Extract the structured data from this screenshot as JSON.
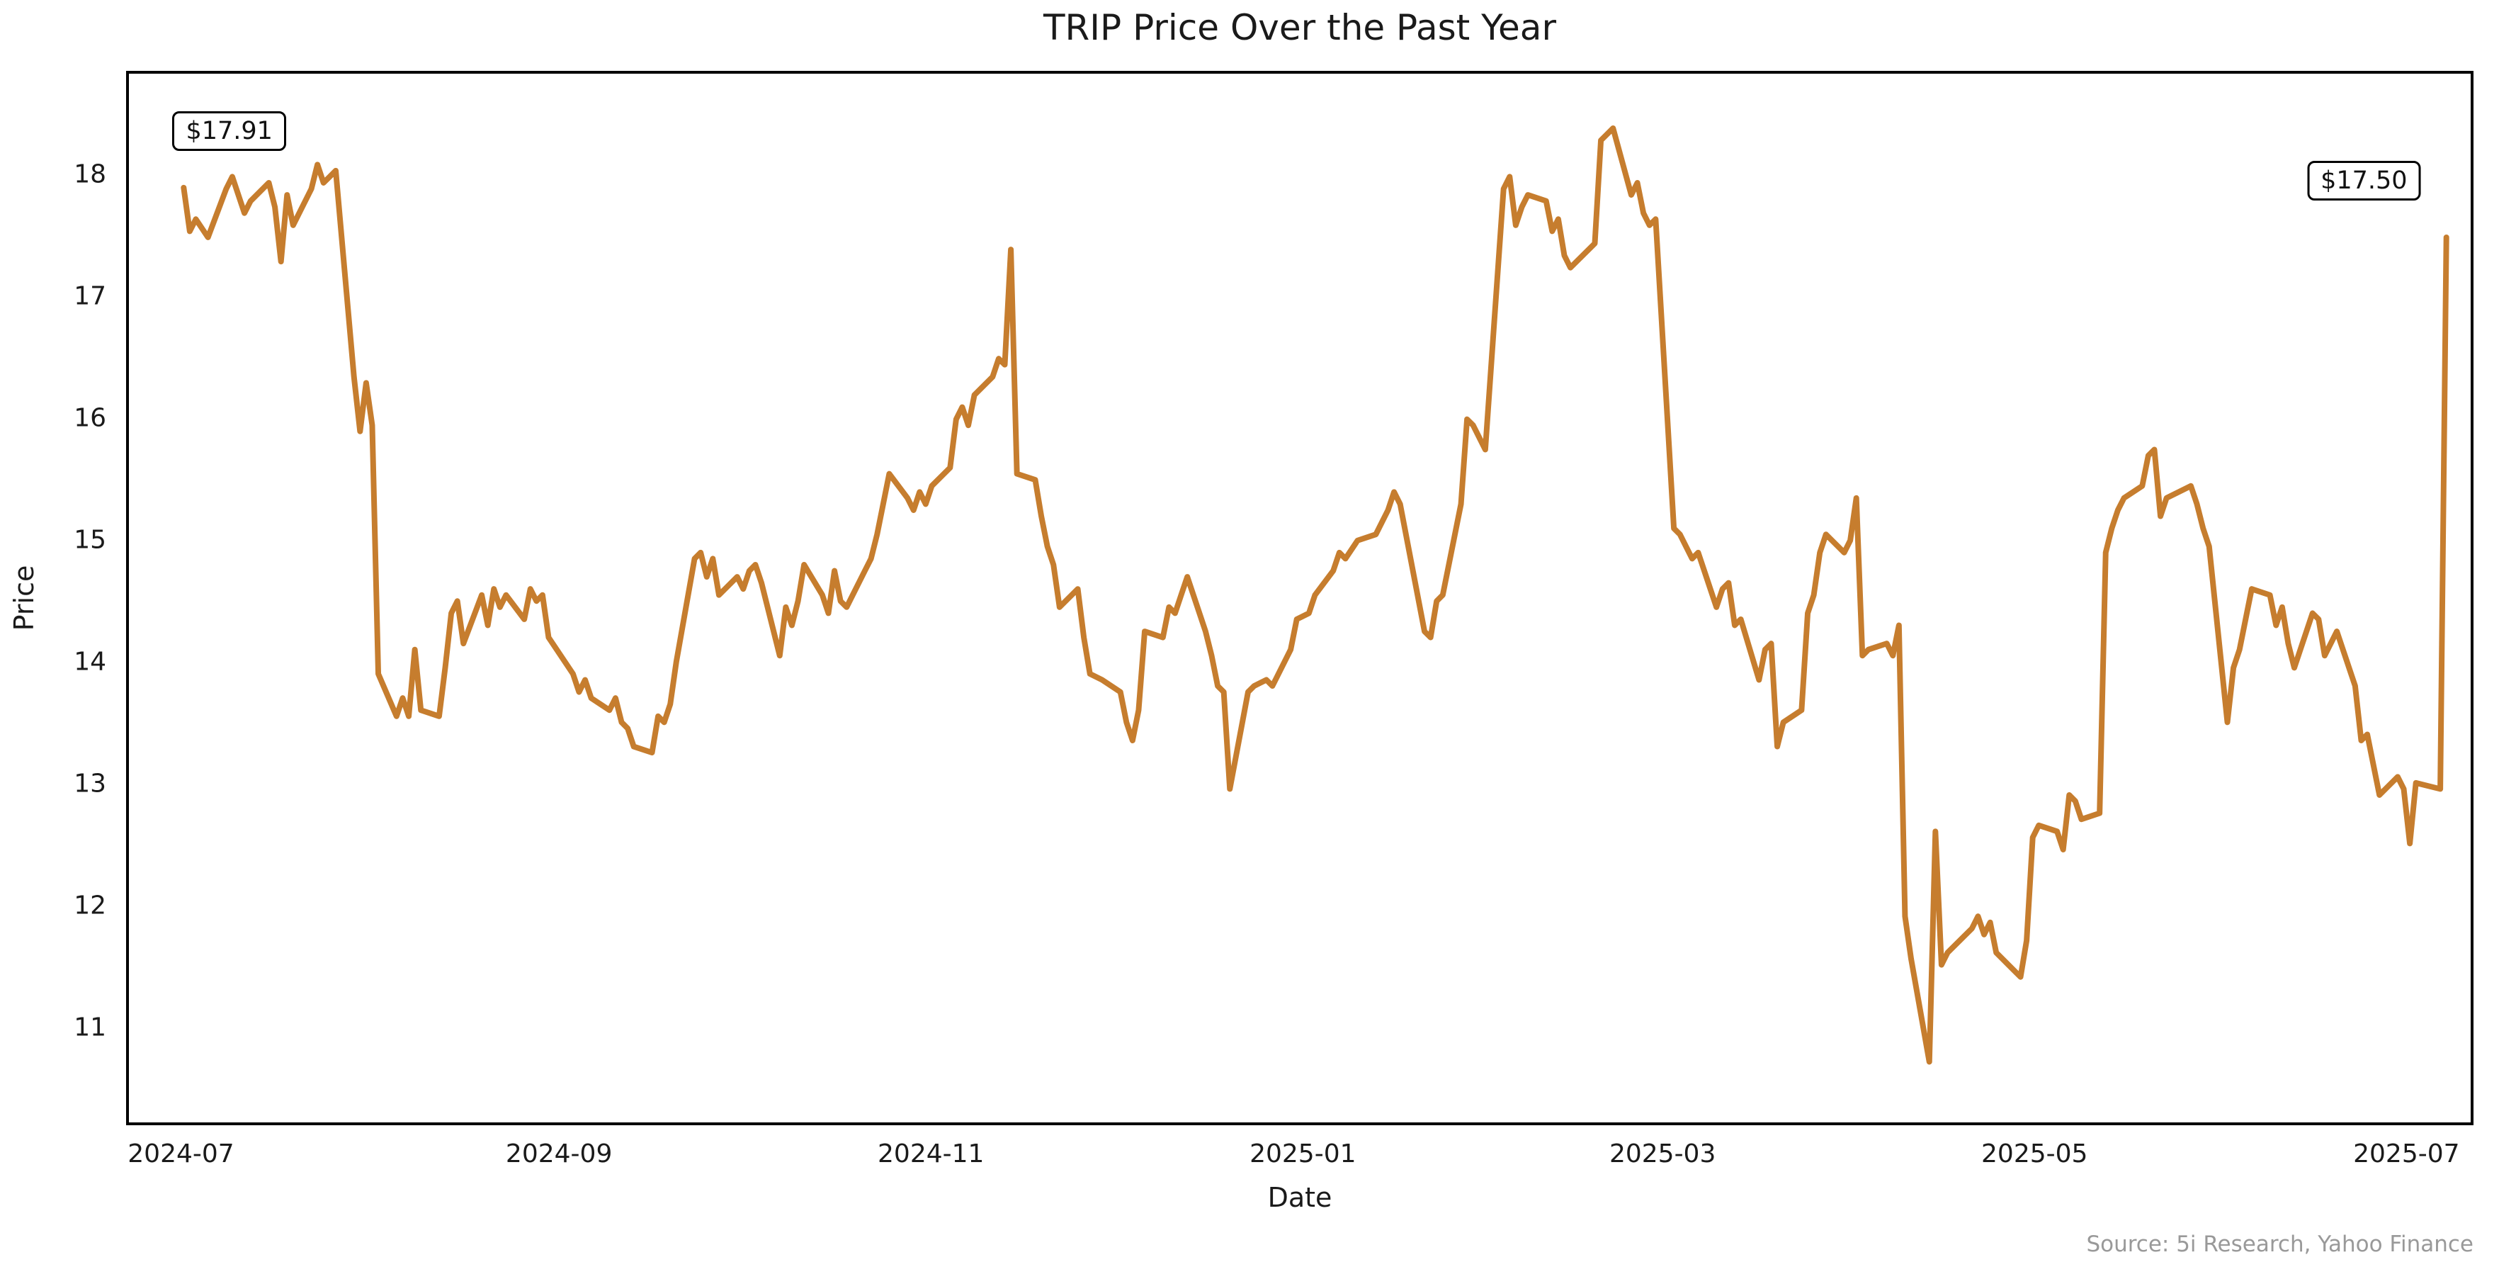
{
  "source": "Source: 5i Research, Yahoo Finance",
  "chart_data": {
    "type": "line",
    "title": "TRIP Price Over the Past Year",
    "xlabel": "Date",
    "ylabel": "Price",
    "grid": false,
    "legend": "none",
    "background": "#ffffff",
    "line_color": "#C67D2E",
    "x_domain": [
      "2024-06-22",
      "2025-07-12"
    ],
    "ylim": [
      10.2,
      18.85
    ],
    "yticks": [
      11,
      12,
      13,
      14,
      15,
      16,
      17,
      18
    ],
    "xticks": [
      {
        "date": "2024-07-01",
        "label": "2024-07"
      },
      {
        "date": "2024-09-01",
        "label": "2024-09"
      },
      {
        "date": "2024-11-01",
        "label": "2024-11"
      },
      {
        "date": "2025-01-01",
        "label": "2025-01"
      },
      {
        "date": "2025-03-01",
        "label": "2025-03"
      },
      {
        "date": "2025-05-01",
        "label": "2025-05"
      },
      {
        "date": "2025-07-01",
        "label": "2025-07"
      }
    ],
    "annotations": [
      {
        "label": "$17.91",
        "date": "2024-07-01",
        "value": 17.91
      },
      {
        "label": "$17.50",
        "date": "2025-07-08",
        "value": 17.5
      }
    ],
    "series": [
      {
        "name": "TRIP",
        "points": [
          [
            "2024-07-01",
            17.91
          ],
          [
            "2024-07-02",
            17.55
          ],
          [
            "2024-07-03",
            17.65
          ],
          [
            "2024-07-05",
            17.5
          ],
          [
            "2024-07-08",
            17.9
          ],
          [
            "2024-07-09",
            18.0
          ],
          [
            "2024-07-10",
            17.85
          ],
          [
            "2024-07-11",
            17.7
          ],
          [
            "2024-07-12",
            17.8
          ],
          [
            "2024-07-15",
            17.95
          ],
          [
            "2024-07-16",
            17.75
          ],
          [
            "2024-07-17",
            17.3
          ],
          [
            "2024-07-18",
            17.85
          ],
          [
            "2024-07-19",
            17.6
          ],
          [
            "2024-07-22",
            17.9
          ],
          [
            "2024-07-23",
            18.1
          ],
          [
            "2024-07-24",
            17.95
          ],
          [
            "2024-07-25",
            18.0
          ],
          [
            "2024-07-26",
            18.05
          ],
          [
            "2024-07-29",
            16.35
          ],
          [
            "2024-07-30",
            15.9
          ],
          [
            "2024-07-31",
            16.3
          ],
          [
            "2024-08-01",
            15.95
          ],
          [
            "2024-08-02",
            13.9
          ],
          [
            "2024-08-05",
            13.55
          ],
          [
            "2024-08-06",
            13.7
          ],
          [
            "2024-08-07",
            13.55
          ],
          [
            "2024-08-08",
            14.1
          ],
          [
            "2024-08-09",
            13.6
          ],
          [
            "2024-08-12",
            13.55
          ],
          [
            "2024-08-13",
            13.95
          ],
          [
            "2024-08-14",
            14.4
          ],
          [
            "2024-08-15",
            14.5
          ],
          [
            "2024-08-16",
            14.15
          ],
          [
            "2024-08-19",
            14.55
          ],
          [
            "2024-08-20",
            14.3
          ],
          [
            "2024-08-21",
            14.6
          ],
          [
            "2024-08-22",
            14.45
          ],
          [
            "2024-08-23",
            14.55
          ],
          [
            "2024-08-26",
            14.35
          ],
          [
            "2024-08-27",
            14.6
          ],
          [
            "2024-08-28",
            14.5
          ],
          [
            "2024-08-29",
            14.55
          ],
          [
            "2024-08-30",
            14.2
          ],
          [
            "2024-09-03",
            13.9
          ],
          [
            "2024-09-04",
            13.75
          ],
          [
            "2024-09-05",
            13.85
          ],
          [
            "2024-09-06",
            13.7
          ],
          [
            "2024-09-09",
            13.6
          ],
          [
            "2024-09-10",
            13.7
          ],
          [
            "2024-09-11",
            13.5
          ],
          [
            "2024-09-12",
            13.45
          ],
          [
            "2024-09-13",
            13.3
          ],
          [
            "2024-09-16",
            13.25
          ],
          [
            "2024-09-17",
            13.55
          ],
          [
            "2024-09-18",
            13.5
          ],
          [
            "2024-09-19",
            13.65
          ],
          [
            "2024-09-20",
            14.0
          ],
          [
            "2024-09-23",
            14.85
          ],
          [
            "2024-09-24",
            14.9
          ],
          [
            "2024-09-25",
            14.7
          ],
          [
            "2024-09-26",
            14.85
          ],
          [
            "2024-09-27",
            14.55
          ],
          [
            "2024-09-30",
            14.7
          ],
          [
            "2024-10-01",
            14.6
          ],
          [
            "2024-10-02",
            14.75
          ],
          [
            "2024-10-03",
            14.8
          ],
          [
            "2024-10-04",
            14.65
          ],
          [
            "2024-10-07",
            14.05
          ],
          [
            "2024-10-08",
            14.45
          ],
          [
            "2024-10-09",
            14.3
          ],
          [
            "2024-10-10",
            14.5
          ],
          [
            "2024-10-11",
            14.8
          ],
          [
            "2024-10-14",
            14.55
          ],
          [
            "2024-10-15",
            14.4
          ],
          [
            "2024-10-16",
            14.75
          ],
          [
            "2024-10-17",
            14.5
          ],
          [
            "2024-10-18",
            14.45
          ],
          [
            "2024-10-21",
            14.75
          ],
          [
            "2024-10-22",
            14.85
          ],
          [
            "2024-10-23",
            15.05
          ],
          [
            "2024-10-24",
            15.3
          ],
          [
            "2024-10-25",
            15.55
          ],
          [
            "2024-10-28",
            15.35
          ],
          [
            "2024-10-29",
            15.25
          ],
          [
            "2024-10-30",
            15.4
          ],
          [
            "2024-10-31",
            15.3
          ],
          [
            "2024-11-01",
            15.45
          ],
          [
            "2024-11-04",
            15.6
          ],
          [
            "2024-11-05",
            16.0
          ],
          [
            "2024-11-06",
            16.1
          ],
          [
            "2024-11-07",
            15.95
          ],
          [
            "2024-11-08",
            16.2
          ],
          [
            "2024-11-11",
            16.35
          ],
          [
            "2024-11-12",
            16.5
          ],
          [
            "2024-11-13",
            16.45
          ],
          [
            "2024-11-14",
            17.4
          ],
          [
            "2024-11-15",
            15.55
          ],
          [
            "2024-11-18",
            15.5
          ],
          [
            "2024-11-19",
            15.2
          ],
          [
            "2024-11-20",
            14.95
          ],
          [
            "2024-11-21",
            14.8
          ],
          [
            "2024-11-22",
            14.45
          ],
          [
            "2024-11-25",
            14.6
          ],
          [
            "2024-11-26",
            14.2
          ],
          [
            "2024-11-27",
            13.9
          ],
          [
            "2024-11-29",
            13.85
          ],
          [
            "2024-12-02",
            13.75
          ],
          [
            "2024-12-03",
            13.5
          ],
          [
            "2024-12-04",
            13.35
          ],
          [
            "2024-12-05",
            13.6
          ],
          [
            "2024-12-06",
            14.25
          ],
          [
            "2024-12-09",
            14.2
          ],
          [
            "2024-12-10",
            14.45
          ],
          [
            "2024-12-11",
            14.4
          ],
          [
            "2024-12-12",
            14.55
          ],
          [
            "2024-12-13",
            14.7
          ],
          [
            "2024-12-16",
            14.25
          ],
          [
            "2024-12-17",
            14.05
          ],
          [
            "2024-12-18",
            13.8
          ],
          [
            "2024-12-19",
            13.75
          ],
          [
            "2024-12-20",
            12.95
          ],
          [
            "2024-12-23",
            13.75
          ],
          [
            "2024-12-24",
            13.8
          ],
          [
            "2024-12-26",
            13.85
          ],
          [
            "2024-12-27",
            13.8
          ],
          [
            "2024-12-30",
            14.1
          ],
          [
            "2024-12-31",
            14.35
          ],
          [
            "2025-01-02",
            14.4
          ],
          [
            "2025-01-03",
            14.55
          ],
          [
            "2025-01-06",
            14.75
          ],
          [
            "2025-01-07",
            14.9
          ],
          [
            "2025-01-08",
            14.85
          ],
          [
            "2025-01-10",
            15.0
          ],
          [
            "2025-01-13",
            15.05
          ],
          [
            "2025-01-14",
            15.15
          ],
          [
            "2025-01-15",
            15.25
          ],
          [
            "2025-01-16",
            15.4
          ],
          [
            "2025-01-17",
            15.3
          ],
          [
            "2025-01-21",
            14.25
          ],
          [
            "2025-01-22",
            14.2
          ],
          [
            "2025-01-23",
            14.5
          ],
          [
            "2025-01-24",
            14.55
          ],
          [
            "2025-01-27",
            15.3
          ],
          [
            "2025-01-28",
            16.0
          ],
          [
            "2025-01-29",
            15.95
          ],
          [
            "2025-01-30",
            15.85
          ],
          [
            "2025-01-31",
            15.75
          ],
          [
            "2025-02-03",
            17.9
          ],
          [
            "2025-02-04",
            18.0
          ],
          [
            "2025-02-05",
            17.6
          ],
          [
            "2025-02-06",
            17.75
          ],
          [
            "2025-02-07",
            17.85
          ],
          [
            "2025-02-10",
            17.8
          ],
          [
            "2025-02-11",
            17.55
          ],
          [
            "2025-02-12",
            17.65
          ],
          [
            "2025-02-13",
            17.35
          ],
          [
            "2025-02-14",
            17.25
          ],
          [
            "2025-02-18",
            17.45
          ],
          [
            "2025-02-19",
            18.3
          ],
          [
            "2025-02-20",
            18.35
          ],
          [
            "2025-02-21",
            18.4
          ],
          [
            "2025-02-24",
            17.85
          ],
          [
            "2025-02-25",
            17.95
          ],
          [
            "2025-02-26",
            17.7
          ],
          [
            "2025-02-27",
            17.6
          ],
          [
            "2025-02-28",
            17.65
          ],
          [
            "2025-03-03",
            15.1
          ],
          [
            "2025-03-04",
            15.05
          ],
          [
            "2025-03-05",
            14.95
          ],
          [
            "2025-03-06",
            14.85
          ],
          [
            "2025-03-07",
            14.9
          ],
          [
            "2025-03-10",
            14.45
          ],
          [
            "2025-03-11",
            14.6
          ],
          [
            "2025-03-12",
            14.65
          ],
          [
            "2025-03-13",
            14.3
          ],
          [
            "2025-03-14",
            14.35
          ],
          [
            "2025-03-17",
            13.85
          ],
          [
            "2025-03-18",
            14.1
          ],
          [
            "2025-03-19",
            14.15
          ],
          [
            "2025-03-20",
            13.3
          ],
          [
            "2025-03-21",
            13.5
          ],
          [
            "2025-03-24",
            13.6
          ],
          [
            "2025-03-25",
            14.4
          ],
          [
            "2025-03-26",
            14.55
          ],
          [
            "2025-03-27",
            14.9
          ],
          [
            "2025-03-28",
            15.05
          ],
          [
            "2025-03-31",
            14.9
          ],
          [
            "2025-04-01",
            15.0
          ],
          [
            "2025-04-02",
            15.35
          ],
          [
            "2025-04-03",
            14.05
          ],
          [
            "2025-04-04",
            14.1
          ],
          [
            "2025-04-07",
            14.15
          ],
          [
            "2025-04-08",
            14.05
          ],
          [
            "2025-04-09",
            14.3
          ],
          [
            "2025-04-10",
            11.9
          ],
          [
            "2025-04-11",
            11.55
          ],
          [
            "2025-04-14",
            10.7
          ],
          [
            "2025-04-15",
            12.6
          ],
          [
            "2025-04-16",
            11.5
          ],
          [
            "2025-04-17",
            11.6
          ],
          [
            "2025-04-21",
            11.8
          ],
          [
            "2025-04-22",
            11.9
          ],
          [
            "2025-04-23",
            11.75
          ],
          [
            "2025-04-24",
            11.85
          ],
          [
            "2025-04-25",
            11.6
          ],
          [
            "2025-04-28",
            11.45
          ],
          [
            "2025-04-29",
            11.4
          ],
          [
            "2025-04-30",
            11.7
          ],
          [
            "2025-05-01",
            12.55
          ],
          [
            "2025-05-02",
            12.65
          ],
          [
            "2025-05-05",
            12.6
          ],
          [
            "2025-05-06",
            12.45
          ],
          [
            "2025-05-07",
            12.9
          ],
          [
            "2025-05-08",
            12.85
          ],
          [
            "2025-05-09",
            12.7
          ],
          [
            "2025-05-12",
            12.75
          ],
          [
            "2025-05-13",
            14.9
          ],
          [
            "2025-05-14",
            15.1
          ],
          [
            "2025-05-15",
            15.25
          ],
          [
            "2025-05-16",
            15.35
          ],
          [
            "2025-05-19",
            15.45
          ],
          [
            "2025-05-20",
            15.7
          ],
          [
            "2025-05-21",
            15.75
          ],
          [
            "2025-05-22",
            15.2
          ],
          [
            "2025-05-23",
            15.35
          ],
          [
            "2025-05-27",
            15.45
          ],
          [
            "2025-05-28",
            15.3
          ],
          [
            "2025-05-29",
            15.1
          ],
          [
            "2025-05-30",
            14.95
          ],
          [
            "2025-06-02",
            13.5
          ],
          [
            "2025-06-03",
            13.95
          ],
          [
            "2025-06-04",
            14.1
          ],
          [
            "2025-06-05",
            14.35
          ],
          [
            "2025-06-06",
            14.6
          ],
          [
            "2025-06-09",
            14.55
          ],
          [
            "2025-06-10",
            14.3
          ],
          [
            "2025-06-11",
            14.45
          ],
          [
            "2025-06-12",
            14.15
          ],
          [
            "2025-06-13",
            13.95
          ],
          [
            "2025-06-16",
            14.4
          ],
          [
            "2025-06-17",
            14.35
          ],
          [
            "2025-06-18",
            14.05
          ],
          [
            "2025-06-20",
            14.25
          ],
          [
            "2025-06-23",
            13.8
          ],
          [
            "2025-06-24",
            13.35
          ],
          [
            "2025-06-25",
            13.4
          ],
          [
            "2025-06-26",
            13.15
          ],
          [
            "2025-06-27",
            12.9
          ],
          [
            "2025-06-30",
            13.05
          ],
          [
            "2025-07-01",
            12.95
          ],
          [
            "2025-07-02",
            12.5
          ],
          [
            "2025-07-03",
            13.0
          ],
          [
            "2025-07-07",
            12.95
          ],
          [
            "2025-07-08",
            17.5
          ]
        ]
      }
    ]
  }
}
